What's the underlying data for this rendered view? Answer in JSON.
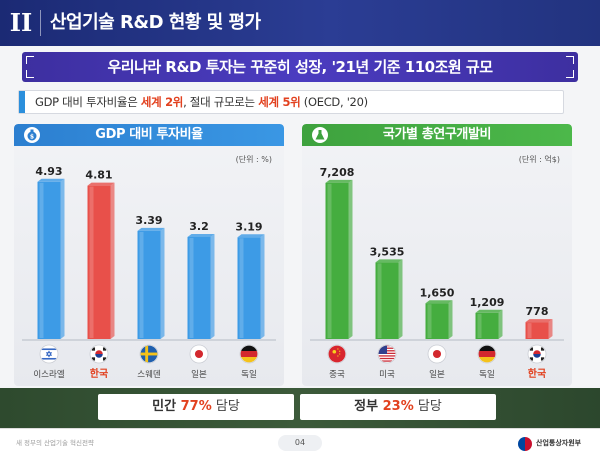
{
  "header": {
    "roman": "II",
    "title": "산업기술 R&D 현황 및 평가"
  },
  "banner": {
    "text": "우리나라 R&D 투자는 꾸준히 성장, '21년 기준 110조원 규모"
  },
  "summary": {
    "part1": "GDP 대비 투자비율은 ",
    "hl1": "세계 2위",
    "part2": ", 절대 규모로는 ",
    "hl2": "세계 5위",
    "part3": " (OECD, '20)"
  },
  "chart_data": [
    {
      "type": "bar",
      "title": "GDP 대비 투자비율",
      "unit": "(단위 : %)",
      "categories": [
        "이스라엘",
        "한국",
        "스웨덴",
        "일본",
        "독일"
      ],
      "labels": [
        "4.93",
        "4.81",
        "3.39",
        "3.2",
        "3.19"
      ],
      "values": [
        4.93,
        4.81,
        3.39,
        3.2,
        3.19
      ],
      "highlight_index": 1,
      "colors": {
        "bar": "#3d9be6",
        "highlight": "#e8504a",
        "head": "#2c7fd0"
      },
      "ylim": [
        0,
        5.3
      ]
    },
    {
      "type": "bar",
      "title": "국가별 총연구개발비",
      "unit": "(단위 : 억$)",
      "categories": [
        "중국",
        "미국",
        "일본",
        "독일",
        "한국"
      ],
      "labels": [
        "7,208",
        "3,535",
        "1,650",
        "1,209",
        "778"
      ],
      "values": [
        7208,
        3535,
        1650,
        1209,
        778
      ],
      "highlight_index": 4,
      "colors": {
        "bar": "#45ad3f",
        "highlight": "#e8504a",
        "head": "#3ea23e"
      },
      "ylim": [
        0,
        7800
      ]
    }
  ],
  "flags": [
    "israel-flag-icon",
    "korea-flag-icon",
    "sweden-flag-icon",
    "japan-flag-icon",
    "germany-flag-icon",
    "china-flag-icon",
    "usa-flag-icon"
  ],
  "bottom": {
    "private_label": "민간 ",
    "private_pct": "77%",
    "private_rest": " 담당",
    "gov_label": "정부 ",
    "gov_pct": "23%",
    "gov_rest": " 담당"
  },
  "footer": {
    "left": "새 정부의 산업기술 혁신전략",
    "page": "04",
    "ministry": "산업통상자원부"
  }
}
